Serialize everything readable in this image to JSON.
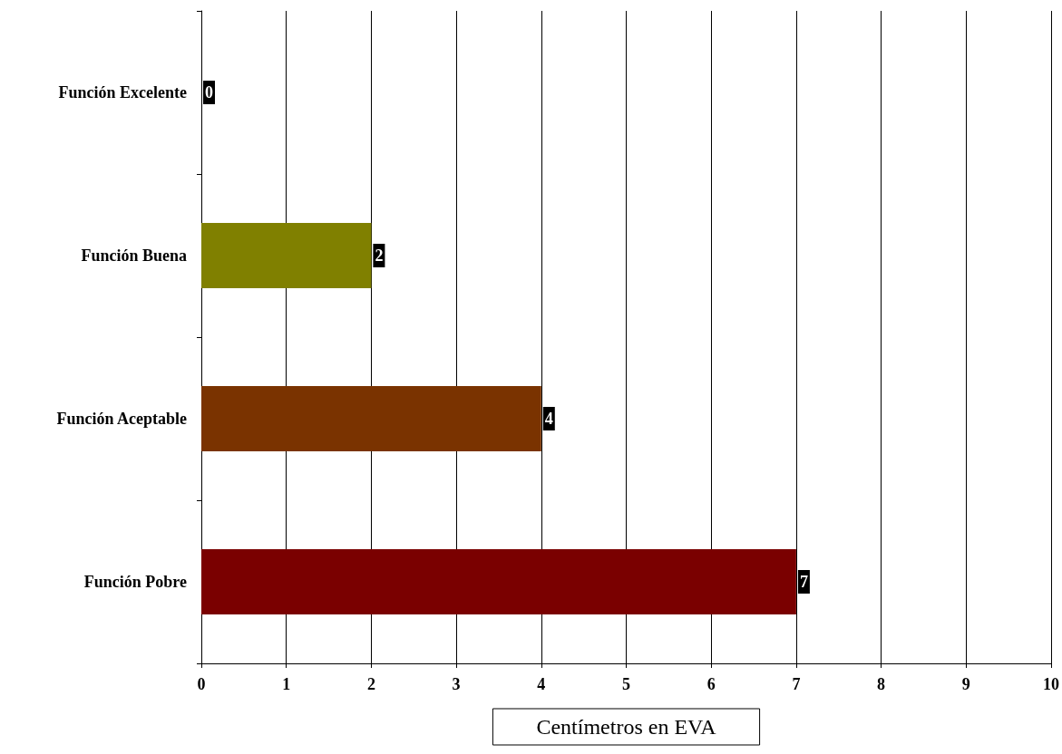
{
  "chart_data": {
    "type": "bar",
    "orientation": "horizontal",
    "xlabel": "Centímetros en EVA",
    "categories": [
      "Función Excelente",
      "Función Buena",
      "Función Aceptable",
      "Función Pobre"
    ],
    "values": [
      0,
      2,
      4,
      7
    ],
    "colors": [
      "#003300",
      "#808000",
      "#7a3300",
      "#7a0000"
    ],
    "xlim": [
      0,
      10
    ],
    "xticks": [
      0,
      1,
      2,
      3,
      4,
      5,
      6,
      7,
      8,
      9,
      10
    ],
    "grid": "x",
    "data_labels": true
  }
}
